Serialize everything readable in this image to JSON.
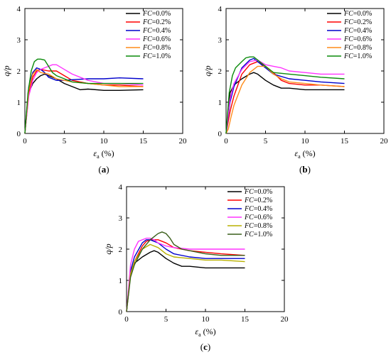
{
  "chart_data": [
    {
      "type": "line",
      "panel_label": "(a)",
      "ylabel": "q/p",
      "xlabel_symbol": "ε",
      "xlabel_subscript": "a",
      "xlabel_unit": "(%)",
      "xlim": [
        0,
        20
      ],
      "ylim": [
        0,
        4
      ],
      "xticks": [
        0,
        5,
        10,
        15,
        20
      ],
      "yticks": [
        0,
        1,
        2,
        3,
        4
      ],
      "grid": false,
      "legend_position": "top-right",
      "legend_prefix": "FC",
      "series": [
        {
          "name": "FC=0.0%",
          "color": "#000000",
          "x": [
            0,
            0.5,
            1,
            1.5,
            2,
            2.5,
            3,
            4,
            5,
            6,
            7,
            8,
            10,
            12,
            15
          ],
          "y": [
            0,
            1.3,
            1.6,
            1.75,
            1.85,
            1.9,
            1.85,
            1.75,
            1.6,
            1.5,
            1.4,
            1.42,
            1.38,
            1.38,
            1.4
          ]
        },
        {
          "name": "FC=0.2%",
          "color": "#ff0000",
          "x": [
            0,
            0.5,
            1,
            1.5,
            2,
            3,
            4,
            5,
            6,
            7,
            8,
            10,
            12,
            15
          ],
          "y": [
            0,
            1.3,
            1.8,
            2.0,
            2.05,
            2.0,
            2.0,
            1.85,
            1.7,
            1.65,
            1.6,
            1.55,
            1.55,
            1.5
          ]
        },
        {
          "name": "FC=0.4%",
          "color": "#0000cc",
          "x": [
            0,
            0.5,
            1,
            1.5,
            2,
            2.5,
            3,
            4,
            5,
            6,
            8,
            10,
            12,
            15
          ],
          "y": [
            0,
            1.5,
            1.95,
            2.1,
            2.05,
            1.95,
            1.8,
            1.7,
            1.7,
            1.72,
            1.75,
            1.75,
            1.78,
            1.75
          ]
        },
        {
          "name": "FC=0.6%",
          "color": "#ff33ff",
          "x": [
            0,
            0.5,
            1,
            1.5,
            2,
            3,
            3.5,
            4,
            5,
            6,
            7,
            8,
            10,
            12,
            15
          ],
          "y": [
            0,
            1.2,
            1.7,
            1.95,
            2.05,
            2.15,
            2.2,
            2.2,
            2.05,
            1.9,
            1.8,
            1.7,
            1.6,
            1.6,
            1.55
          ]
        },
        {
          "name": "FC=0.8%",
          "color": "#ff8c1a",
          "x": [
            0,
            0.5,
            1,
            1.5,
            2,
            3,
            4,
            5,
            6,
            8,
            10,
            12,
            15
          ],
          "y": [
            0,
            1.4,
            1.9,
            2.05,
            1.95,
            1.9,
            1.75,
            1.7,
            1.65,
            1.6,
            1.55,
            1.5,
            1.5
          ]
        },
        {
          "name": "FC=1.0%",
          "color": "#0a8a0a",
          "x": [
            0,
            0.4,
            0.8,
            1.2,
            1.6,
            2,
            2.5,
            3,
            3.5,
            4,
            5,
            6,
            8,
            10,
            12,
            15
          ],
          "y": [
            0,
            1.3,
            2.0,
            2.3,
            2.38,
            2.38,
            2.35,
            2.15,
            1.95,
            1.85,
            1.75,
            1.65,
            1.6,
            1.6,
            1.6,
            1.6
          ]
        }
      ]
    },
    {
      "type": "line",
      "panel_label": "(b)",
      "ylabel": "q/p",
      "xlabel_symbol": "ε",
      "xlabel_subscript": "a",
      "xlabel_unit": "(%)",
      "xlim": [
        0,
        20
      ],
      "ylim": [
        0,
        4
      ],
      "xticks": [
        0,
        5,
        10,
        15,
        20
      ],
      "yticks": [
        0,
        1,
        2,
        3,
        4
      ],
      "grid": false,
      "legend_position": "top-right",
      "legend_prefix": "FC",
      "series": [
        {
          "name": "FC=0.0%",
          "color": "#000000",
          "x": [
            0,
            0.5,
            1,
            2,
            3,
            3.5,
            4,
            5,
            6,
            7,
            8,
            10,
            12,
            15
          ],
          "y": [
            0,
            1.3,
            1.55,
            1.75,
            1.9,
            1.95,
            1.9,
            1.7,
            1.55,
            1.45,
            1.45,
            1.4,
            1.4,
            1.4
          ]
        },
        {
          "name": "FC=0.2%",
          "color": "#ff0000",
          "x": [
            0,
            0.5,
            1,
            2,
            3,
            4,
            5,
            6,
            7,
            8,
            10,
            12,
            15
          ],
          "y": [
            0,
            0.7,
            1.2,
            1.9,
            2.2,
            2.3,
            2.15,
            1.95,
            1.7,
            1.6,
            1.55,
            1.55,
            1.5
          ]
        },
        {
          "name": "FC=0.4%",
          "color": "#0000cc",
          "x": [
            0,
            0.5,
            1,
            2,
            3,
            3.5,
            4,
            5,
            6,
            8,
            10,
            12,
            15
          ],
          "y": [
            0,
            1.0,
            1.5,
            2.1,
            2.35,
            2.4,
            2.3,
            2.1,
            1.9,
            1.75,
            1.7,
            1.65,
            1.6
          ]
        },
        {
          "name": "FC=0.6%",
          "color": "#ff33ff",
          "x": [
            0,
            0.5,
            1,
            2,
            3,
            4,
            5,
            6,
            7,
            8,
            10,
            12,
            15
          ],
          "y": [
            0,
            1.1,
            1.6,
            2.05,
            2.3,
            2.35,
            2.2,
            2.15,
            2.1,
            2.0,
            1.95,
            1.9,
            1.9
          ]
        },
        {
          "name": "FC=0.8%",
          "color": "#ff8c1a",
          "x": [
            0,
            0.3,
            0.6,
            1,
            2,
            3,
            4,
            5,
            6,
            7,
            8,
            10,
            12,
            15
          ],
          "y": [
            0,
            0.15,
            0.5,
            0.9,
            1.55,
            1.95,
            2.15,
            2.15,
            1.9,
            1.75,
            1.65,
            1.6,
            1.55,
            1.5
          ]
        },
        {
          "name": "FC=1.0%",
          "color": "#0a8a0a",
          "x": [
            0,
            0.4,
            0.8,
            1.2,
            2,
            2.5,
            3,
            3.5,
            4,
            5,
            6,
            8,
            10,
            12,
            15
          ],
          "y": [
            0,
            1.3,
            1.85,
            2.1,
            2.3,
            2.42,
            2.45,
            2.45,
            2.35,
            2.15,
            1.95,
            1.9,
            1.85,
            1.8,
            1.75
          ]
        }
      ]
    },
    {
      "type": "line",
      "panel_label": "(c)",
      "ylabel": "q/p",
      "xlabel_symbol": "ε",
      "xlabel_subscript": "a",
      "xlabel_unit": "(%)",
      "xlim": [
        0,
        20
      ],
      "ylim": [
        0,
        4
      ],
      "xticks": [
        0,
        5,
        10,
        15,
        20
      ],
      "yticks": [
        0,
        1,
        2,
        3,
        4
      ],
      "grid": false,
      "legend_position": "top-right",
      "legend_prefix": "FC",
      "series": [
        {
          "name": "FC=0.0%",
          "color": "#000000",
          "x": [
            0,
            0.5,
            1,
            2,
            3,
            3.5,
            4,
            5,
            6,
            7,
            8,
            10,
            12,
            15
          ],
          "y": [
            0,
            1.3,
            1.55,
            1.75,
            1.9,
            1.95,
            1.9,
            1.7,
            1.55,
            1.45,
            1.45,
            1.4,
            1.4,
            1.4
          ]
        },
        {
          "name": "FC=0.2%",
          "color": "#ff0000",
          "x": [
            0,
            0.5,
            1,
            2,
            2.5,
            3,
            4,
            5,
            6,
            8,
            10,
            12,
            15
          ],
          "y": [
            0,
            1.2,
            1.6,
            2.1,
            2.25,
            2.3,
            2.3,
            2.2,
            2.05,
            1.95,
            1.9,
            1.85,
            1.8
          ]
        },
        {
          "name": "FC=0.4%",
          "color": "#0000cc",
          "x": [
            0,
            0.5,
            1,
            2,
            2.5,
            3,
            4,
            5,
            6,
            8,
            10,
            12,
            15
          ],
          "y": [
            0,
            1.3,
            1.75,
            2.2,
            2.3,
            2.3,
            2.2,
            2.0,
            1.85,
            1.75,
            1.7,
            1.7,
            1.7
          ]
        },
        {
          "name": "FC=0.6%",
          "color": "#ff33ff",
          "x": [
            0,
            0.5,
            1,
            1.5,
            2,
            2.5,
            3,
            3.5,
            4,
            5,
            6,
            8,
            10,
            12,
            15
          ],
          "y": [
            0,
            1.5,
            2.0,
            2.25,
            2.3,
            2.35,
            2.35,
            2.3,
            2.2,
            2.1,
            2.05,
            2.0,
            2.0,
            2.0,
            2.0
          ]
        },
        {
          "name": "FC=0.8%",
          "color": "#b8b000",
          "x": [
            0,
            0.5,
            1,
            2,
            3,
            4,
            5,
            6,
            8,
            10,
            12,
            15
          ],
          "y": [
            0,
            1.2,
            1.6,
            2.0,
            2.15,
            2.05,
            1.85,
            1.75,
            1.7,
            1.65,
            1.65,
            1.6
          ]
        },
        {
          "name": "FC=1.0%",
          "color": "#3a5e1a",
          "x": [
            0,
            0.5,
            1,
            2,
            3,
            3.5,
            4,
            4.5,
            5,
            5.5,
            6,
            7,
            8,
            10,
            12,
            15
          ],
          "y": [
            0,
            1.1,
            1.5,
            2.0,
            2.3,
            2.4,
            2.5,
            2.55,
            2.5,
            2.35,
            2.15,
            2.0,
            1.95,
            1.85,
            1.8,
            1.8
          ]
        }
      ]
    }
  ]
}
